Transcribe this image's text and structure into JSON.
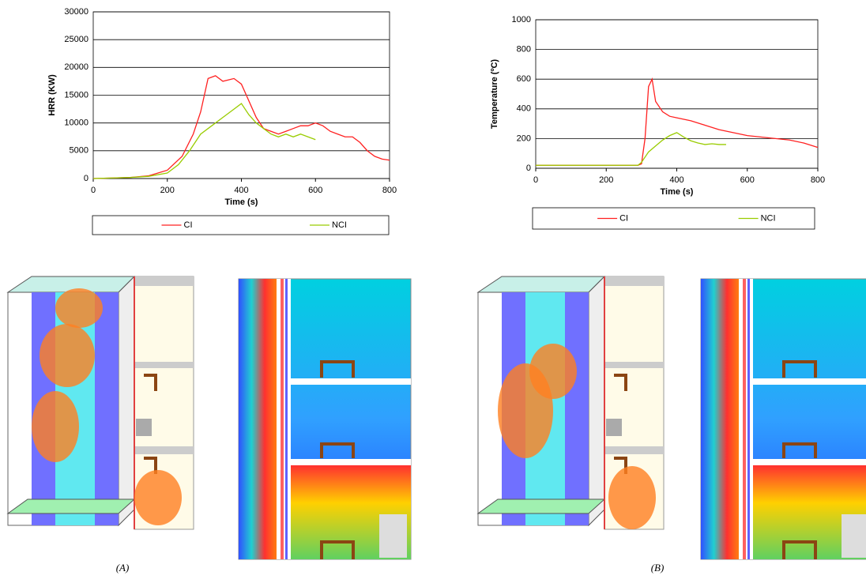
{
  "chart_data": [
    {
      "type": "line",
      "ylabel": "HRR (KW)",
      "xlabel": "Time (s)",
      "xlim": [
        0,
        800
      ],
      "xticks": [
        0,
        200,
        400,
        600,
        800
      ],
      "ylim": [
        0,
        30000
      ],
      "yticks": [
        0,
        5000,
        10000,
        15000,
        20000,
        25000,
        30000
      ],
      "grid": true,
      "legend": "bottom",
      "series": [
        {
          "name": "CI",
          "color": "#ff2020",
          "x": [
            0,
            100,
            150,
            200,
            240,
            270,
            290,
            310,
            330,
            350,
            380,
            400,
            420,
            440,
            460,
            480,
            500,
            520,
            540,
            560,
            580,
            600,
            620,
            640,
            660,
            680,
            700,
            720,
            740,
            760,
            780,
            800
          ],
          "values": [
            0,
            200,
            500,
            1500,
            4000,
            8000,
            12000,
            18000,
            18500,
            17500,
            18000,
            17000,
            14000,
            11000,
            9000,
            8500,
            8000,
            8500,
            9000,
            9500,
            9500,
            10000,
            9500,
            8500,
            8000,
            7500,
            7500,
            6500,
            5000,
            4000,
            3500,
            3300
          ]
        },
        {
          "name": "NCI",
          "color": "#99cc00",
          "x": [
            0,
            100,
            150,
            200,
            230,
            260,
            290,
            320,
            350,
            380,
            400,
            420,
            440,
            460,
            480,
            500,
            520,
            540,
            560,
            580,
            600
          ],
          "values": [
            0,
            200,
            400,
            1000,
            2500,
            5000,
            8000,
            9500,
            11000,
            12500,
            13500,
            11500,
            10000,
            9000,
            8000,
            7500,
            8000,
            7500,
            8000,
            7500,
            7000
          ]
        }
      ]
    },
    {
      "type": "line",
      "ylabel": "Temperature (ºC)",
      "xlabel": "Time (s)",
      "xlim": [
        0,
        800
      ],
      "xticks": [
        0,
        200,
        400,
        600,
        800
      ],
      "ylim": [
        0,
        1000
      ],
      "yticks": [
        0,
        200,
        400,
        600,
        800,
        1000
      ],
      "grid": true,
      "legend": "bottom",
      "series": [
        {
          "name": "CI",
          "color": "#ff2020",
          "x": [
            0,
            290,
            300,
            310,
            320,
            330,
            340,
            360,
            380,
            400,
            440,
            480,
            520,
            560,
            600,
            640,
            680,
            720,
            760,
            800
          ],
          "values": [
            20,
            20,
            30,
            200,
            550,
            600,
            450,
            380,
            350,
            340,
            320,
            290,
            260,
            240,
            220,
            210,
            200,
            190,
            170,
            140
          ]
        },
        {
          "name": "NCI",
          "color": "#99cc00",
          "x": [
            0,
            290,
            300,
            320,
            340,
            360,
            380,
            400,
            420,
            440,
            460,
            480,
            500,
            520,
            540
          ],
          "values": [
            20,
            20,
            40,
            110,
            150,
            190,
            220,
            240,
            210,
            185,
            170,
            160,
            165,
            160,
            160
          ]
        }
      ]
    }
  ],
  "captions": [
    "(A)",
    "(B)"
  ]
}
